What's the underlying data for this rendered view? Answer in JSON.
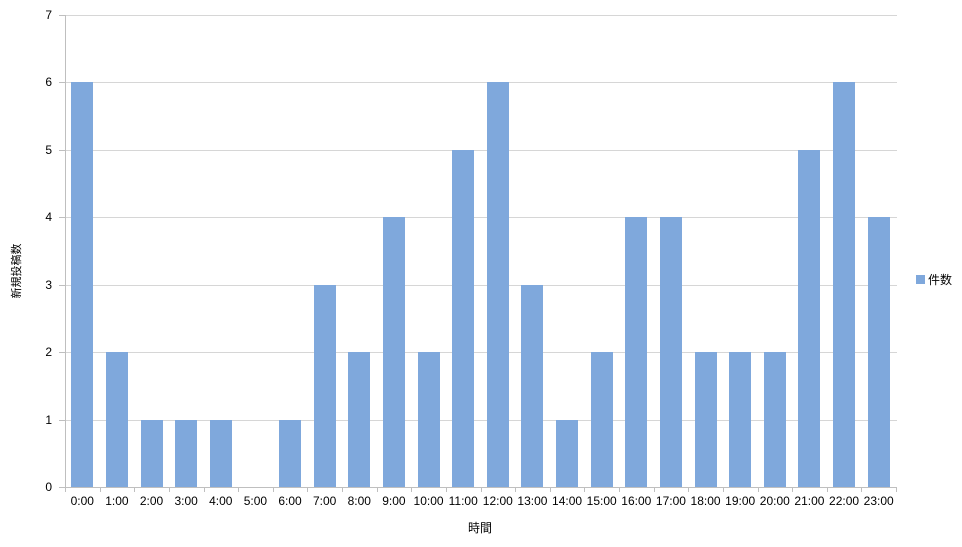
{
  "chart_data": {
    "type": "bar",
    "title": "",
    "categories": [
      "0:00",
      "1:00",
      "2:00",
      "3:00",
      "4:00",
      "5:00",
      "6:00",
      "7:00",
      "8:00",
      "9:00",
      "10:00",
      "11:00",
      "12:00",
      "13:00",
      "14:00",
      "15:00",
      "16:00",
      "17:00",
      "18:00",
      "19:00",
      "20:00",
      "21:00",
      "22:00",
      "23:00"
    ],
    "series": [
      {
        "name": "件数",
        "values": [
          6,
          2,
          1,
          1,
          1,
          0,
          1,
          3,
          2,
          4,
          2,
          5,
          6,
          3,
          1,
          2,
          4,
          4,
          2,
          2,
          2,
          5,
          6,
          4
        ]
      }
    ],
    "xlabel": "時間",
    "ylabel": "新規投稿数",
    "ylim": [
      0,
      7
    ],
    "ytick_step": 1,
    "yticks": [
      "0",
      "1",
      "2",
      "3",
      "4",
      "5",
      "6",
      "7"
    ],
    "grid": true,
    "legend_position": "right",
    "colors": {
      "bar": "#7FA8DC",
      "gridline": "#D6D6D6",
      "axis": "#BFBFBF",
      "text": "#000000",
      "background": "#FFFFFF"
    }
  }
}
